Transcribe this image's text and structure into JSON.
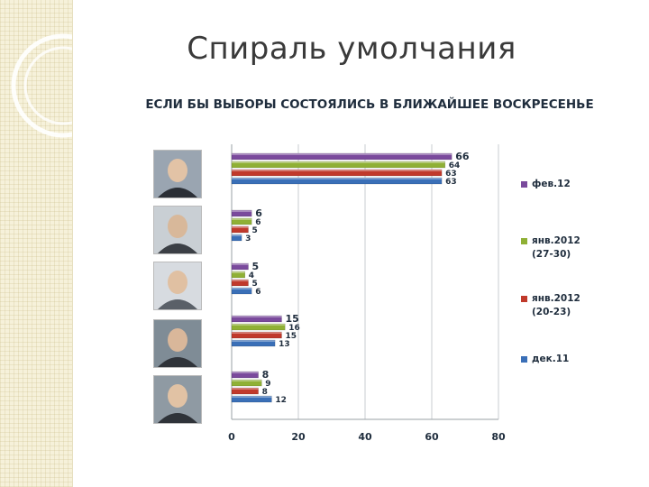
{
  "slide": {
    "title": "Спираль умолчания"
  },
  "chart_data": {
    "type": "bar",
    "orientation": "horizontal",
    "title": "ЕСЛИ БЫ ВЫБОРЫ СОСТОЯЛИСЬ В БЛИЖАЙШЕЕ ВОСКРЕСЕНЬЕ",
    "xlim": [
      0,
      80
    ],
    "xticks": [
      "0",
      "20",
      "40",
      "60",
      "80"
    ],
    "grid": "vertical",
    "legend_position": "right",
    "categories": [
      "",
      "",
      "",
      "",
      ""
    ],
    "series": [
      {
        "name": "фев.12",
        "color": "#7a4a9c",
        "values": [
          66,
          6,
          5,
          15,
          8
        ]
      },
      {
        "name": "янв.2012 (27-30)",
        "color": "#8fb035",
        "values": [
          64,
          6,
          4,
          16,
          9
        ]
      },
      {
        "name": "янв.2012 (20-23)",
        "color": "#c0392b",
        "values": [
          63,
          5,
          5,
          15,
          8
        ]
      },
      {
        "name": "дек.11",
        "color": "#3a6fb7",
        "values": [
          63,
          3,
          6,
          13,
          12
        ]
      }
    ]
  },
  "legend": [
    {
      "line1": "фев.12",
      "line2": "",
      "icon": "purple-square-icon"
    },
    {
      "line1": "янв.2012",
      "line2": "(27-30)",
      "icon": "green-square-icon"
    },
    {
      "line1": "янв.2012",
      "line2": "(20-23)",
      "icon": "red-square-icon"
    },
    {
      "line1": "дек.11",
      "line2": "",
      "icon": "blue-square-icon"
    }
  ]
}
